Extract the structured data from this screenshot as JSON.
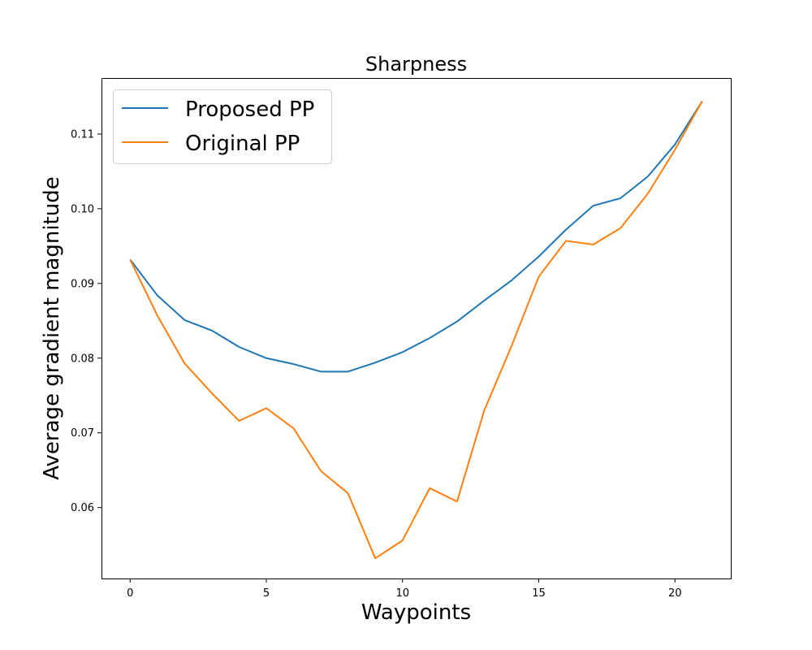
{
  "chart_data": {
    "type": "line",
    "title": "Sharpness",
    "xlabel": "Waypoints",
    "ylabel": "Average gradient magnitude",
    "xlim": [
      -1.05,
      22.05
    ],
    "ylim": [
      0.0505,
      0.1175
    ],
    "xticks": [
      0,
      5,
      10,
      15,
      20
    ],
    "yticks": [
      0.06,
      0.07,
      0.08,
      0.09,
      0.1,
      0.11
    ],
    "ytick_labels": [
      "0.06",
      "0.07",
      "0.08",
      "0.09",
      "0.10",
      "0.11"
    ],
    "grid": false,
    "legend_position": "upper-left",
    "x": [
      0,
      1,
      2,
      3,
      4,
      5,
      6,
      7,
      8,
      9,
      10,
      11,
      12,
      13,
      14,
      15,
      16,
      17,
      18,
      19,
      20,
      21
    ],
    "series": [
      {
        "name": "Proposed PP",
        "color": "#1f77b4",
        "values": [
          0.0932,
          0.0884,
          0.0851,
          0.0837,
          0.0815,
          0.08,
          0.0792,
          0.0782,
          0.0782,
          0.0794,
          0.0808,
          0.0827,
          0.0849,
          0.0877,
          0.0904,
          0.0936,
          0.0972,
          0.1004,
          0.1014,
          0.1043,
          0.1086,
          0.1144
        ]
      },
      {
        "name": "Original PP",
        "color": "#ff7f0e",
        "values": [
          0.0932,
          0.0857,
          0.0793,
          0.0753,
          0.0716,
          0.0733,
          0.0706,
          0.0649,
          0.0619,
          0.0532,
          0.0556,
          0.0626,
          0.0608,
          0.073,
          0.0816,
          0.0909,
          0.0957,
          0.0952,
          0.0974,
          0.102,
          0.1079,
          0.1144
        ]
      }
    ]
  }
}
